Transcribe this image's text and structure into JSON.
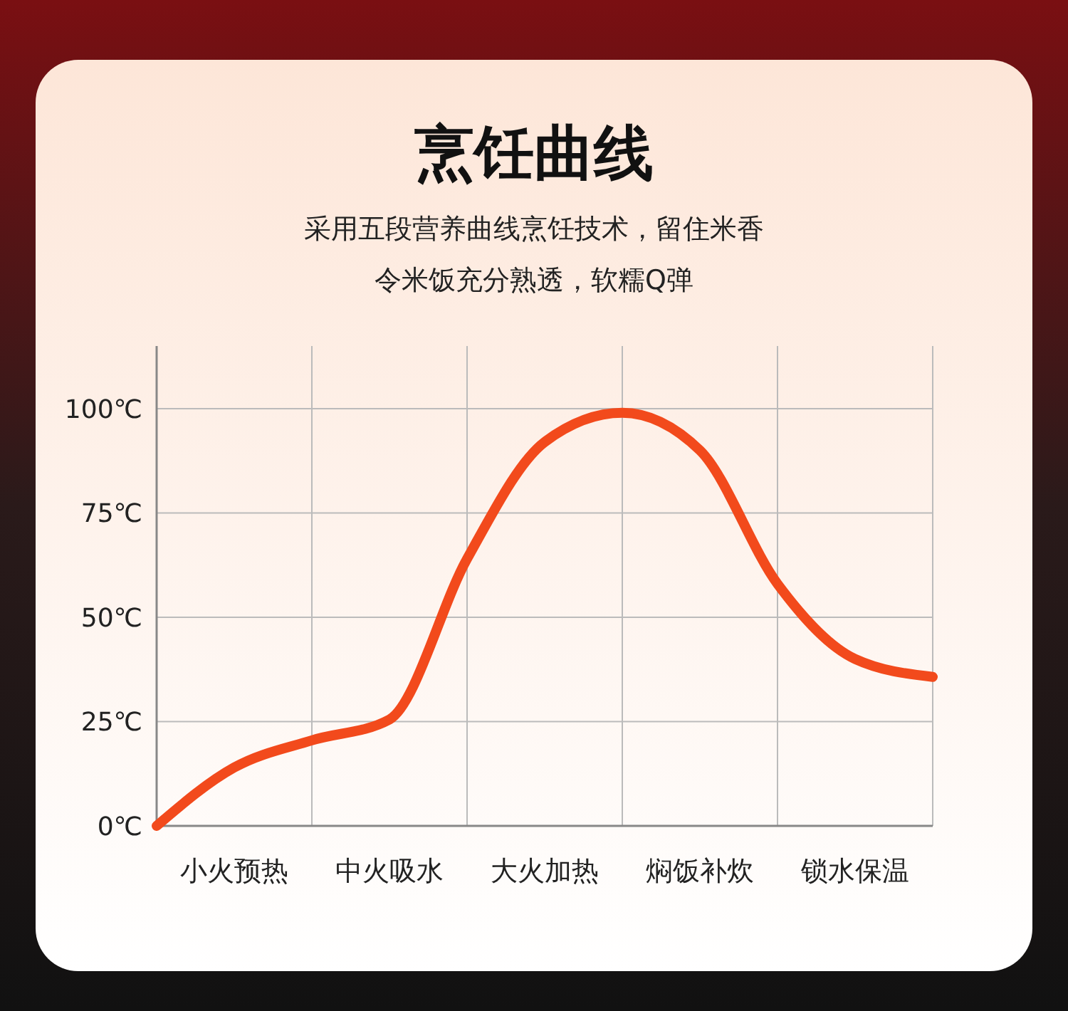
{
  "chart_data": {
    "type": "line",
    "title": "烹饪曲线",
    "subtitle": "采用五段营养曲线烹饪技术，留住米香",
    "annotations": [
      "令米饭充分熟透，软糯Q弹"
    ],
    "categories": [
      null,
      "小火预热",
      null,
      "中火吸水",
      null,
      "大火加热",
      null,
      "焖饭补炊",
      null,
      "锁水保温",
      null
    ],
    "ylim": [
      0,
      115
    ],
    "yticks": [
      {
        "value": 0,
        "label": "0℃"
      },
      {
        "value": 25,
        "label": "25℃"
      },
      {
        "value": 50,
        "label": "50℃"
      },
      {
        "value": 75,
        "label": "75℃"
      },
      {
        "value": 100,
        "label": "100℃"
      }
    ],
    "grid": true,
    "series": [
      {
        "color": "#f24a1c",
        "values": [
          0,
          14,
          20.5,
          25.5,
          64,
          92,
          99,
          90,
          58,
          40,
          35.7
        ]
      }
    ]
  }
}
